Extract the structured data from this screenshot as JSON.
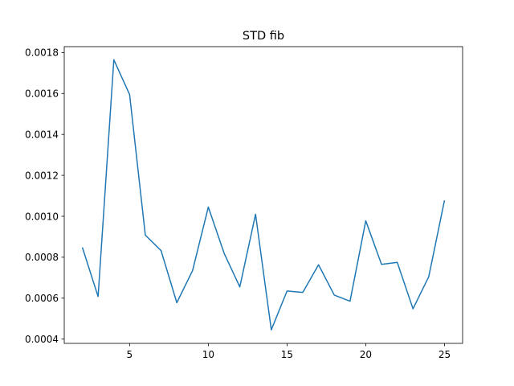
{
  "chart_data": {
    "type": "line",
    "title": "STD fib",
    "xlabel": "",
    "ylabel": "",
    "xlim": [
      0.85,
      26.15
    ],
    "ylim": [
      0.000379,
      0.001829
    ],
    "x_ticks": [
      5,
      10,
      15,
      20,
      25
    ],
    "x_tick_labels": [
      "5",
      "10",
      "15",
      "20",
      "25"
    ],
    "y_ticks": [
      0.0004,
      0.0006,
      0.0008,
      0.001,
      0.0012,
      0.0014,
      0.0016,
      0.0018
    ],
    "y_tick_labels": [
      "0.0004",
      "0.0006",
      "0.0008",
      "0.0010",
      "0.0012",
      "0.0014",
      "0.0016",
      "0.0018"
    ],
    "grid": false,
    "line_color": "#1f77b4",
    "series": [
      {
        "x": [
          2,
          3,
          4,
          5,
          6,
          7,
          8,
          9,
          10,
          11,
          12,
          13,
          14,
          15,
          16,
          17,
          18,
          19,
          20,
          21,
          22,
          23,
          24,
          25
        ],
        "y": [
          0.000848,
          0.000608,
          0.001765,
          0.001595,
          0.000908,
          0.000832,
          0.000578,
          0.000735,
          0.001045,
          0.00082,
          0.000655,
          0.00101,
          0.000445,
          0.000635,
          0.000628,
          0.000763,
          0.000615,
          0.000585,
          0.000978,
          0.000765,
          0.000775,
          0.000548,
          0.000705,
          0.001078
        ]
      }
    ]
  }
}
